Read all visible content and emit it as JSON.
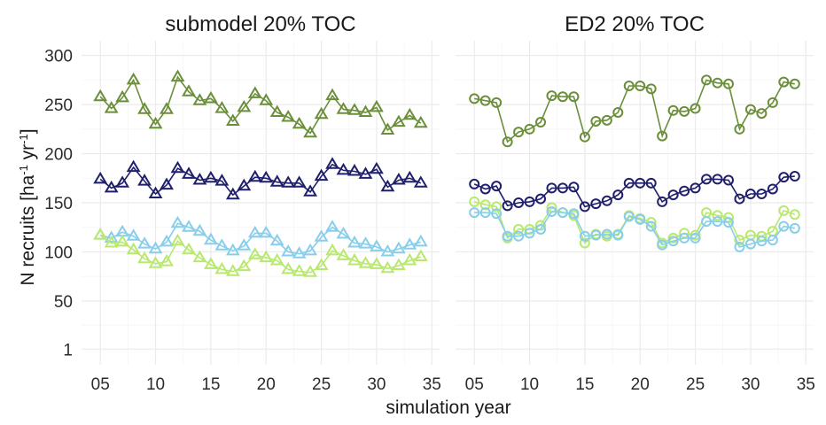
{
  "chart_data": {
    "type": "line",
    "x_label": "simulation year",
    "y_label_main": "N recruits [ha",
    "y_label_sup1": "-1",
    "y_label_mid": " yr",
    "y_label_sup2": "-1",
    "y_label_end": "]",
    "x_ticks": [
      5,
      10,
      15,
      20,
      25,
      30,
      35
    ],
    "x_tick_labels": [
      "05",
      "10",
      "15",
      "20",
      "25",
      "30",
      "35"
    ],
    "y_ticks": [
      1,
      50,
      100,
      150,
      200,
      250,
      300
    ],
    "y_tick_labels": [
      "1",
      "50",
      "100",
      "150",
      "200",
      "250",
      "300"
    ],
    "ylim": [
      -15,
      315
    ],
    "xlim": [
      3.3,
      35.7
    ],
    "colors": {
      "olive": "#6b8e3a",
      "navy": "#1f1f6b",
      "lightblue": "#87ceeb",
      "lightgreen": "#b8e86e"
    },
    "panels": [
      {
        "title": "submodel 20% TOC",
        "marker": "triangle",
        "series": [
          {
            "color_key": "olive",
            "x": [
              5,
              6,
              7,
              8,
              9,
              10,
              11,
              12,
              13,
              14,
              15,
              16,
              17,
              18,
              19,
              20,
              21,
              22,
              23,
              24,
              25,
              26,
              27,
              28,
              29,
              30,
              31,
              32,
              33,
              34
            ],
            "values": [
              258,
              246,
              257,
              275,
              245,
              230,
              245,
              278,
              263,
              254,
              256,
              246,
              233,
              247,
              261,
              254,
              242,
              237,
              230,
              221,
              240,
              259,
              245,
              244,
              242,
              247,
              224,
              232,
              239,
              231
            ]
          },
          {
            "color_key": "navy",
            "x": [
              5,
              6,
              7,
              8,
              9,
              10,
              11,
              12,
              13,
              14,
              15,
              16,
              17,
              18,
              19,
              20,
              21,
              22,
              23,
              24,
              25,
              26,
              27,
              28,
              29,
              30,
              31,
              32,
              33,
              34
            ],
            "values": [
              174,
              165,
              170,
              186,
              172,
              159,
              168,
              185,
              179,
              173,
              175,
              172,
              158,
              167,
              176,
              175,
              171,
              170,
              170,
              161,
              177,
              189,
              183,
              182,
              179,
              184,
              166,
              173,
              175,
              170
            ]
          },
          {
            "color_key": "lightblue",
            "x": [
              5,
              6,
              7,
              8,
              9,
              10,
              11,
              12,
              13,
              14,
              15,
              16,
              17,
              18,
              19,
              20,
              21,
              22,
              23,
              24,
              25,
              26,
              27,
              28,
              29,
              30,
              31,
              32,
              33,
              34
            ],
            "values": [
              117,
              114,
              120,
              116,
              108,
              103,
              110,
              129,
              125,
              121,
              112,
              106,
              101,
              106,
              119,
              119,
              111,
              100,
              98,
              101,
              115,
              125,
              118,
              109,
              108,
              105,
              100,
              103,
              107,
              110
            ]
          },
          {
            "color_key": "lightgreen",
            "x": [
              5,
              6,
              7,
              8,
              9,
              10,
              11,
              12,
              13,
              14,
              15,
              16,
              17,
              18,
              19,
              20,
              21,
              22,
              23,
              24,
              25,
              26,
              27,
              28,
              29,
              30,
              31,
              32,
              33,
              34
            ],
            "values": [
              117,
              109,
              110,
              102,
              93,
              88,
              90,
              111,
              102,
              94,
              87,
              82,
              80,
              85,
              97,
              94,
              91,
              82,
              80,
              79,
              86,
              101,
              96,
              91,
              88,
              87,
              83,
              86,
              91,
              95
            ]
          }
        ]
      },
      {
        "title": "ED2 20% TOC",
        "marker": "circle",
        "series": [
          {
            "color_key": "olive",
            "x": [
              5,
              6,
              7,
              8,
              9,
              10,
              11,
              12,
              13,
              14,
              15,
              16,
              17,
              18,
              19,
              20,
              21,
              22,
              23,
              24,
              25,
              26,
              27,
              28,
              29,
              30,
              31,
              32,
              33,
              34
            ],
            "values": [
              256,
              254,
              252,
              212,
              222,
              225,
              232,
              259,
              258,
              258,
              217,
              233,
              234,
              242,
              269,
              269,
              266,
              218,
              244,
              243,
              246,
              275,
              272,
              271,
              225,
              245,
              241,
              252,
              273,
              271
            ]
          },
          {
            "color_key": "navy",
            "x": [
              5,
              6,
              7,
              8,
              9,
              10,
              11,
              12,
              13,
              14,
              15,
              16,
              17,
              18,
              19,
              20,
              21,
              22,
              23,
              24,
              25,
              26,
              27,
              28,
              29,
              30,
              31,
              32,
              33,
              34
            ],
            "values": [
              169,
              164,
              167,
              147,
              150,
              151,
              154,
              165,
              165,
              166,
              146,
              149,
              152,
              158,
              170,
              170,
              170,
              151,
              158,
              162,
              165,
              174,
              174,
              173,
              154,
              159,
              159,
              164,
              176,
              177
            ]
          },
          {
            "color_key": "lightgreen",
            "x": [
              5,
              6,
              7,
              8,
              9,
              10,
              11,
              12,
              13,
              14,
              15,
              16,
              17,
              18,
              19,
              20,
              21,
              22,
              23,
              24,
              25,
              26,
              27,
              28,
              29,
              30,
              31,
              32,
              33,
              34
            ],
            "values": [
              151,
              148,
              146,
              114,
              123,
              123,
              127,
              145,
              140,
              137,
              109,
              118,
              116,
              118,
              137,
              134,
              130,
              109,
              114,
              119,
              117,
              140,
              137,
              135,
              112,
              117,
              116,
              121,
              142,
              138
            ]
          },
          {
            "color_key": "lightblue",
            "x": [
              5,
              6,
              7,
              8,
              9,
              10,
              11,
              12,
              13,
              14,
              15,
              16,
              17,
              18,
              19,
              20,
              21,
              22,
              23,
              24,
              25,
              26,
              27,
              28,
              29,
              30,
              31,
              32,
              33,
              34
            ],
            "values": [
              140,
              140,
              139,
              116,
              116,
              119,
              123,
              141,
              140,
              139,
              116,
              117,
              118,
              117,
              136,
              133,
              126,
              107,
              111,
              114,
              114,
              131,
              131,
              130,
              105,
              108,
              111,
              112,
              126,
              124
            ]
          }
        ]
      }
    ]
  }
}
